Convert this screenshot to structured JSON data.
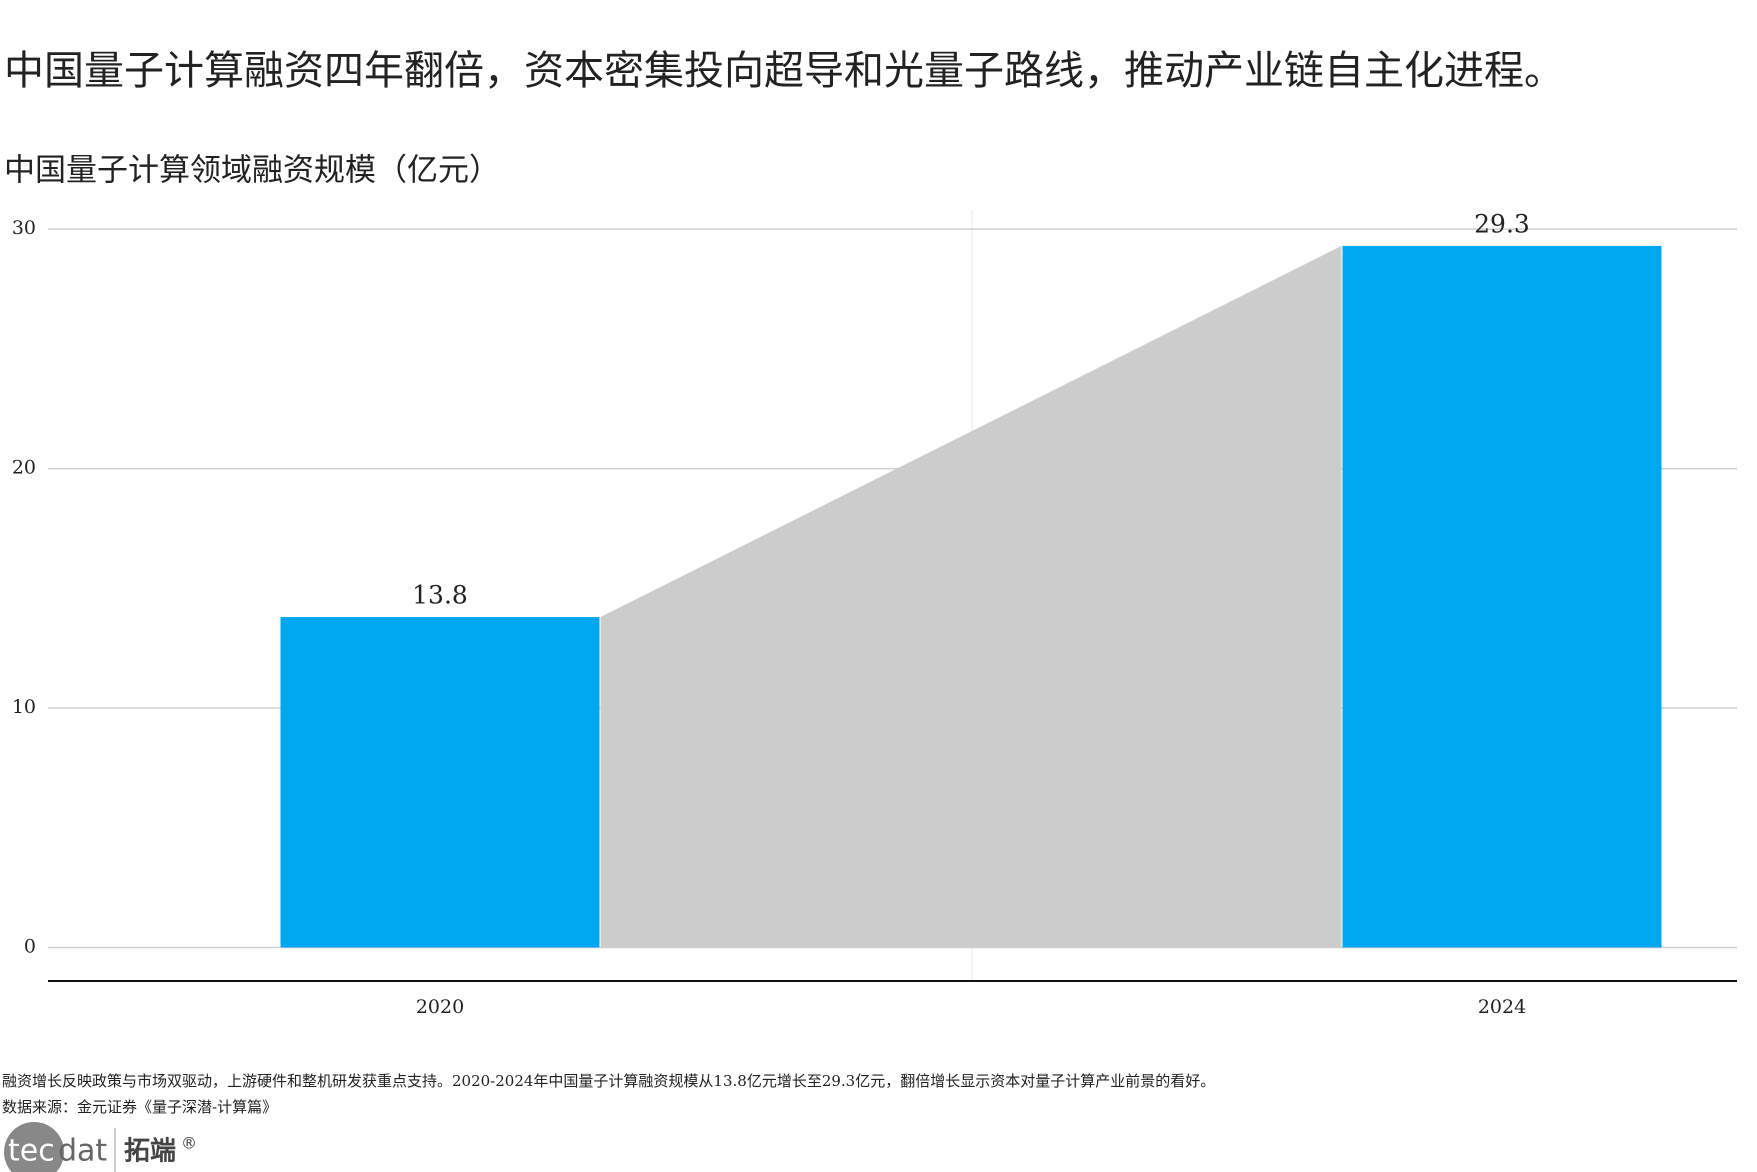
{
  "chart_data": {
    "type": "bar",
    "title": "中国量子计算融资四年翻倍，资本密集投向超导和光量子路线，推动产业链自主化进程。",
    "subtitle": "中国量子计算领域融资规模（亿元）",
    "categories": [
      "2020",
      "2024"
    ],
    "values": [
      13.8,
      29.3
    ],
    "color": "#00a8f0",
    "connector_color": "#cccccc",
    "ylim": [
      -1.4,
      30.8
    ],
    "yticks": [
      0,
      10,
      20,
      30
    ],
    "grid": true,
    "note": "融资增长反映政策与市场双驱动，上游硬件和整机研发获重点支持。2020-2024年中国量子计算融资规模从13.8亿元增长至29.3亿元，翻倍增长显示资本对量子计算产业前景的看好。",
    "source": "数据来源：金元证券《量子深潜-计算篇》"
  },
  "logo": {
    "mark": "tec",
    "text": "dat",
    "brand": "拓端",
    "registered": "®"
  }
}
